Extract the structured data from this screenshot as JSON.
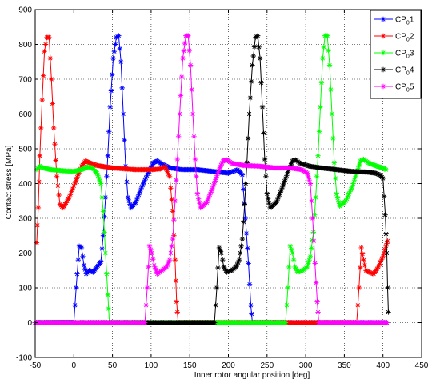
{
  "chart_data": {
    "type": "line",
    "xlabel": "Inner rotor angular position [deg]",
    "ylabel": "Contact stress [MPa]",
    "xlim": [
      -50,
      450
    ],
    "ylim": [
      -100,
      900
    ],
    "xticks": [
      -50,
      0,
      50,
      100,
      150,
      200,
      250,
      300,
      350,
      400,
      450
    ],
    "yticks": [
      -100,
      0,
      100,
      200,
      300,
      400,
      500,
      600,
      700,
      800,
      900
    ],
    "grid": true,
    "marker": "star",
    "legend_position": "top-right",
    "series": [
      {
        "name": "CP01",
        "legend": {
          "base": "CP",
          "sub": "0",
          "suffix": "1"
        },
        "color": "#0000ff",
        "points": [
          [
            -50,
            0
          ],
          [
            0,
            0
          ],
          [
            3,
            100
          ],
          [
            7,
            220
          ],
          [
            10,
            215
          ],
          [
            13,
            165
          ],
          [
            16,
            140
          ],
          [
            20,
            150
          ],
          [
            25,
            145
          ],
          [
            30,
            160
          ],
          [
            35,
            175
          ],
          [
            38,
            250
          ],
          [
            41,
            360
          ],
          [
            44,
            480
          ],
          [
            47,
            620
          ],
          [
            51,
            760
          ],
          [
            55,
            820
          ],
          [
            58,
            825
          ],
          [
            61,
            750
          ],
          [
            64,
            600
          ],
          [
            67,
            450
          ],
          [
            70,
            360
          ],
          [
            74,
            330
          ],
          [
            80,
            345
          ],
          [
            88,
            390
          ],
          [
            96,
            430
          ],
          [
            103,
            460
          ],
          [
            108,
            465
          ],
          [
            115,
            455
          ],
          [
            125,
            445
          ],
          [
            140,
            440
          ],
          [
            160,
            440
          ],
          [
            180,
            435
          ],
          [
            200,
            430
          ],
          [
            212,
            440
          ],
          [
            218,
            425
          ],
          [
            222,
            300
          ],
          [
            226,
            170
          ],
          [
            229,
            50
          ],
          [
            231,
            0
          ],
          [
            405,
            0
          ]
        ]
      },
      {
        "name": "CP02",
        "legend": {
          "base": "CP",
          "sub": "0",
          "suffix": "2"
        },
        "color": "#ff0000",
        "points": [
          [
            -48,
            230
          ],
          [
            -46,
            330
          ],
          [
            -44,
            480
          ],
          [
            -41,
            640
          ],
          [
            -38,
            780
          ],
          [
            -35,
            820
          ],
          [
            -32,
            820
          ],
          [
            -29,
            700
          ],
          [
            -26,
            560
          ],
          [
            -22,
            420
          ],
          [
            -18,
            340
          ],
          [
            -14,
            330
          ],
          [
            -6,
            360
          ],
          [
            3,
            410
          ],
          [
            10,
            450
          ],
          [
            15,
            465
          ],
          [
            20,
            460
          ],
          [
            30,
            452
          ],
          [
            50,
            445
          ],
          [
            80,
            440
          ],
          [
            100,
            440
          ],
          [
            112,
            442
          ],
          [
            118,
            448
          ],
          [
            124,
            420
          ],
          [
            128,
            320
          ],
          [
            131,
            180
          ],
          [
            133,
            60
          ],
          [
            135,
            0
          ],
          [
            366,
            0
          ],
          [
            369,
            100
          ],
          [
            372,
            215
          ],
          [
            375,
            180
          ],
          [
            378,
            150
          ],
          [
            382,
            145
          ],
          [
            388,
            140
          ],
          [
            394,
            160
          ],
          [
            400,
            190
          ],
          [
            404,
            220
          ],
          [
            406,
            235
          ]
        ]
      },
      {
        "name": "CP03",
        "legend": {
          "base": "CP",
          "sub": "0",
          "suffix": "3"
        },
        "color": "#00ff00",
        "points": [
          [
            -48,
            440
          ],
          [
            -44,
            450
          ],
          [
            -40,
            445
          ],
          [
            -30,
            440
          ],
          [
            -20,
            438
          ],
          [
            -10,
            436
          ],
          [
            0,
            435
          ],
          [
            10,
            440
          ],
          [
            18,
            448
          ],
          [
            24,
            445
          ],
          [
            30,
            430
          ],
          [
            35,
            400
          ],
          [
            38,
            320
          ],
          [
            41,
            200
          ],
          [
            44,
            80
          ],
          [
            46,
            0
          ],
          [
            274,
            0
          ],
          [
            277,
            100
          ],
          [
            280,
            220
          ],
          [
            283,
            200
          ],
          [
            286,
            160
          ],
          [
            290,
            145
          ],
          [
            296,
            150
          ],
          [
            302,
            160
          ],
          [
            306,
            190
          ],
          [
            310,
            260
          ],
          [
            313,
            360
          ],
          [
            316,
            480
          ],
          [
            319,
            620
          ],
          [
            322,
            760
          ],
          [
            325,
            825
          ],
          [
            328,
            825
          ],
          [
            331,
            740
          ],
          [
            334,
            600
          ],
          [
            337,
            460
          ],
          [
            340,
            370
          ],
          [
            344,
            335
          ],
          [
            352,
            350
          ],
          [
            360,
            390
          ],
          [
            366,
            430
          ],
          [
            371,
            465
          ],
          [
            375,
            470
          ],
          [
            381,
            460
          ],
          [
            392,
            450
          ],
          [
            400,
            445
          ],
          [
            404,
            440
          ]
        ]
      },
      {
        "name": "CP04",
        "legend": {
          "base": "CP",
          "sub": "0",
          "suffix": "4"
        },
        "color": "#000000",
        "points": [
          [
            -50,
            0
          ],
          [
            182,
            0
          ],
          [
            185,
            100
          ],
          [
            188,
            215
          ],
          [
            191,
            200
          ],
          [
            194,
            160
          ],
          [
            198,
            145
          ],
          [
            204,
            150
          ],
          [
            210,
            160
          ],
          [
            214,
            180
          ],
          [
            218,
            240
          ],
          [
            221,
            340
          ],
          [
            224,
            460
          ],
          [
            227,
            600
          ],
          [
            231,
            740
          ],
          [
            235,
            820
          ],
          [
            238,
            825
          ],
          [
            241,
            760
          ],
          [
            244,
            620
          ],
          [
            247,
            470
          ],
          [
            250,
            370
          ],
          [
            254,
            330
          ],
          [
            262,
            345
          ],
          [
            270,
            390
          ],
          [
            278,
            440
          ],
          [
            283,
            465
          ],
          [
            287,
            468
          ],
          [
            293,
            458
          ],
          [
            305,
            450
          ],
          [
            320,
            445
          ],
          [
            340,
            440
          ],
          [
            360,
            435
          ],
          [
            380,
            433
          ],
          [
            390,
            430
          ],
          [
            396,
            425
          ],
          [
            400,
            415
          ],
          [
            403,
            310
          ],
          [
            405,
            200
          ],
          [
            406,
            100
          ],
          [
            407,
            30
          ]
        ]
      },
      {
        "name": "CP05",
        "legend": {
          "base": "CP",
          "sub": "0",
          "suffix": "5"
        },
        "color": "#ff00ff",
        "points": [
          [
            -50,
            0
          ],
          [
            92,
            0
          ],
          [
            95,
            100
          ],
          [
            98,
            220
          ],
          [
            101,
            200
          ],
          [
            104,
            165
          ],
          [
            108,
            140
          ],
          [
            114,
            150
          ],
          [
            120,
            160
          ],
          [
            124,
            180
          ],
          [
            128,
            240
          ],
          [
            131,
            350
          ],
          [
            134,
            470
          ],
          [
            137,
            600
          ],
          [
            141,
            760
          ],
          [
            145,
            825
          ],
          [
            148,
            825
          ],
          [
            151,
            740
          ],
          [
            154,
            600
          ],
          [
            157,
            470
          ],
          [
            160,
            370
          ],
          [
            164,
            330
          ],
          [
            172,
            345
          ],
          [
            180,
            390
          ],
          [
            188,
            440
          ],
          [
            193,
            465
          ],
          [
            198,
            468
          ],
          [
            205,
            458
          ],
          [
            220,
            452
          ],
          [
            240,
            450
          ],
          [
            260,
            445
          ],
          [
            280,
            445
          ],
          [
            295,
            440
          ],
          [
            302,
            430
          ],
          [
            306,
            400
          ],
          [
            309,
            300
          ],
          [
            312,
            170
          ],
          [
            315,
            60
          ],
          [
            317,
            0
          ],
          [
            405,
            0
          ]
        ]
      }
    ]
  }
}
